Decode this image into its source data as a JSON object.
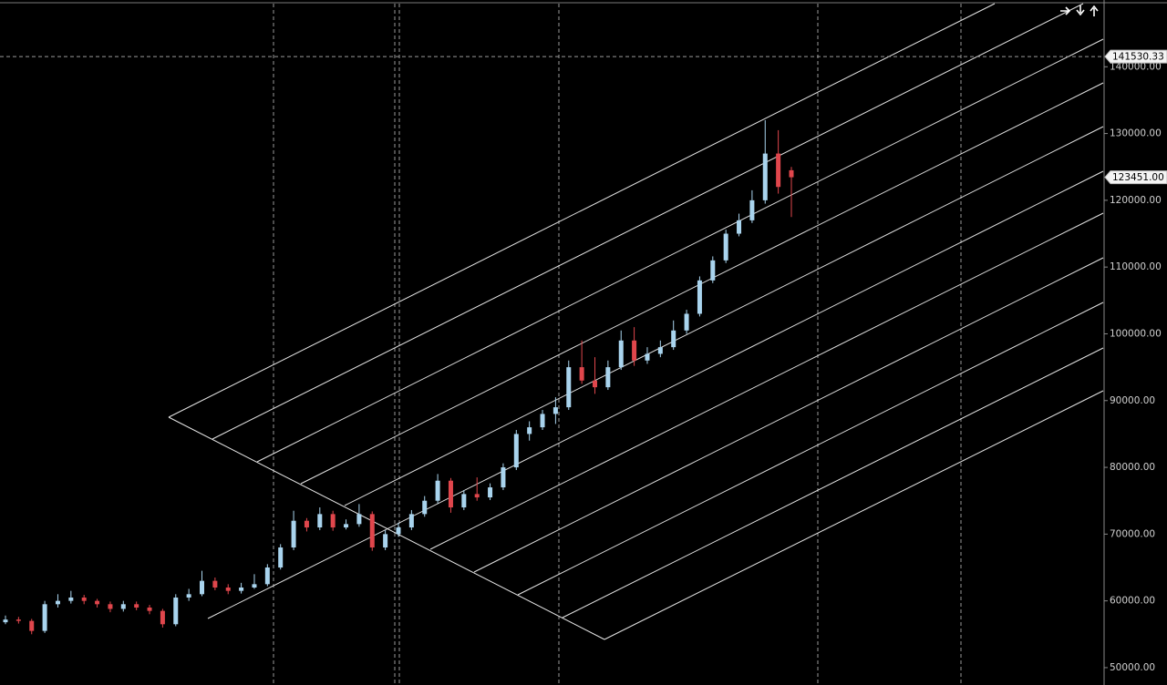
{
  "chart_data": {
    "type": "candlestick",
    "open": [
      56800,
      57200,
      57000,
      55500,
      59500,
      60000,
      60500,
      60000,
      59500,
      58800,
      59500,
      59000,
      58500,
      56500,
      60500,
      61000,
      63000,
      62000,
      61500,
      62000,
      62500,
      65000,
      68000,
      72000,
      71000,
      73000,
      71000,
      71500,
      73000,
      68000,
      70000,
      71000,
      73000,
      75000,
      78000,
      74000,
      76000,
      75500,
      77000,
      80000,
      85000,
      86000,
      88000,
      89000,
      95000,
      93000,
      92000,
      95000,
      99000,
      96000,
      97000,
      98000,
      100500,
      103000,
      108000,
      111000,
      115000,
      117000,
      120000,
      127000,
      124500
    ],
    "high": [
      57800,
      57600,
      57300,
      60000,
      61000,
      61500,
      60900,
      60300,
      59900,
      60000,
      59900,
      59400,
      58800,
      61000,
      61800,
      64500,
      63500,
      62500,
      62700,
      64000,
      65500,
      68500,
      73500,
      72400,
      74000,
      73500,
      72200,
      74500,
      73400,
      70600,
      71700,
      73600,
      75700,
      79000,
      78400,
      76600,
      78500,
      77600,
      80600,
      85600,
      86900,
      88600,
      90500,
      96000,
      99000,
      96500,
      96000,
      100500,
      101000,
      98000,
      99000,
      102000,
      103600,
      108600,
      111600,
      115600,
      118000,
      121500,
      132000,
      130500,
      125000
    ],
    "low": [
      56500,
      56600,
      55000,
      55200,
      59000,
      59600,
      59500,
      59000,
      58300,
      58400,
      58600,
      58000,
      56000,
      56200,
      60000,
      60700,
      61600,
      61000,
      61100,
      61800,
      62200,
      64700,
      67600,
      70400,
      70600,
      70500,
      70700,
      71100,
      67500,
      67600,
      69600,
      70600,
      72600,
      74600,
      73200,
      73600,
      75000,
      75100,
      76600,
      79600,
      84000,
      85600,
      86500,
      88600,
      92500,
      91000,
      91600,
      94600,
      95200,
      95500,
      96500,
      97600,
      100000,
      102600,
      107600,
      110600,
      114600,
      116600,
      119500,
      121000,
      117500
    ],
    "close": [
      57200,
      57000,
      55500,
      59500,
      60000,
      60500,
      60000,
      59500,
      58800,
      59500,
      59000,
      58500,
      56500,
      60500,
      61000,
      63000,
      62000,
      61500,
      62000,
      62500,
      65000,
      68000,
      72000,
      71000,
      73000,
      71000,
      71500,
      73000,
      68000,
      70000,
      71000,
      73000,
      75000,
      78000,
      74000,
      76000,
      75500,
      77000,
      80000,
      85000,
      86000,
      88000,
      89000,
      95000,
      93000,
      92000,
      95000,
      99000,
      96000,
      97000,
      98000,
      100500,
      103000,
      108000,
      111000,
      115000,
      117000,
      120000,
      127000,
      122000,
      123451
    ],
    "up_color": "#a9d4ee",
    "down_color": "#e0464c",
    "ylim": [
      47400,
      150000
    ],
    "yticks": [
      {
        "value": 50000,
        "label": "50000.00"
      },
      {
        "value": 60000,
        "label": "60000.00"
      },
      {
        "value": 70000,
        "label": "70000.00"
      },
      {
        "value": 80000,
        "label": "80000.00"
      },
      {
        "value": 90000,
        "label": "90000.00"
      },
      {
        "value": 100000,
        "label": "100000.00"
      },
      {
        "value": 110000,
        "label": "110000.00"
      },
      {
        "value": 120000,
        "label": "120000.00"
      },
      {
        "value": 130000,
        "label": "130000.00"
      },
      {
        "value": 140000,
        "label": "140000.00"
      }
    ],
    "crosshair_price": 141530.33,
    "last_price": {
      "value": 123451,
      "label": "123451.00"
    }
  }
}
